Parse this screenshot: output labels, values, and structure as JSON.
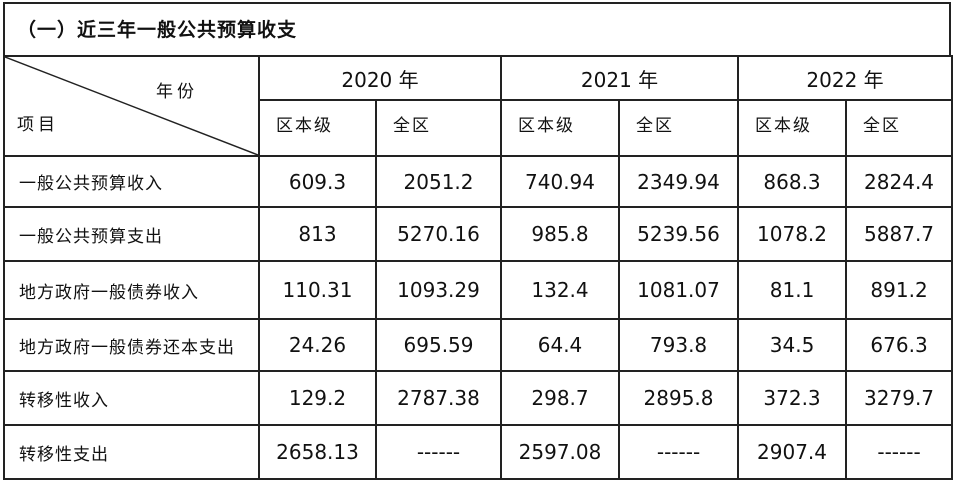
{
  "title": "（一）近三年一般公共预算收支",
  "header": {
    "corner_top": "年份",
    "corner_bottom": "项目",
    "years": [
      "2020 年",
      "2021 年",
      "2022 年"
    ],
    "subcols": [
      "区本级",
      "全区"
    ]
  },
  "rows": [
    {
      "label": "一般公共预算收入",
      "values": [
        "609.3",
        "2051.2",
        "740.94",
        "2349.94",
        "868.3",
        "2824.4"
      ]
    },
    {
      "label": "一般公共预算支出",
      "values": [
        "813",
        "5270.16",
        "985.8",
        "5239.56",
        "1078.2",
        "5887.7"
      ]
    },
    {
      "label": "地方政府一般债券收入",
      "values": [
        "110.31",
        "1093.29",
        "132.4",
        "1081.07",
        "81.1",
        "891.2"
      ]
    },
    {
      "label": "地方政府一般债券还本支出",
      "values": [
        "24.26",
        "695.59",
        "64.4",
        "793.8",
        "34.5",
        "676.3"
      ]
    },
    {
      "label": "转移性收入",
      "values": [
        "129.2",
        "2787.38",
        "298.7",
        "2895.8",
        "372.3",
        "3279.7"
      ]
    },
    {
      "label": "转移性支出",
      "values": [
        "2658.13",
        "------",
        "2597.08",
        "------",
        "2907.4",
        "------"
      ]
    }
  ]
}
